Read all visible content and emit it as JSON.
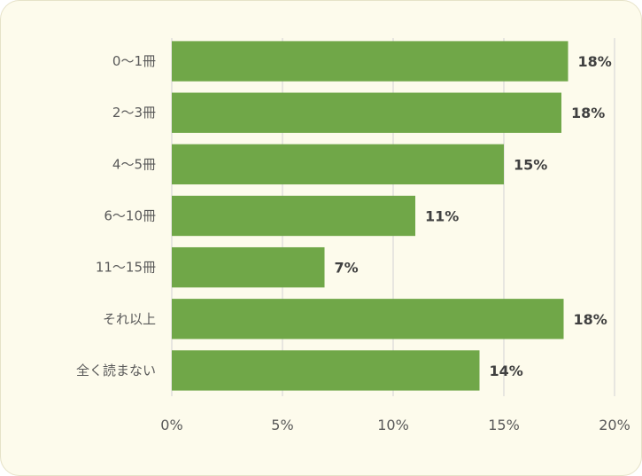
{
  "chart_data": {
    "type": "bar",
    "orientation": "horizontal",
    "categories": [
      "0～1冊",
      "2～3冊",
      "4～5冊",
      "6～10冊",
      "11～15冊",
      "それ以上",
      "全く読まない"
    ],
    "values": [
      17.9,
      17.6,
      15.0,
      11.0,
      6.9,
      17.7,
      13.9
    ],
    "data_labels": [
      "18%",
      "18%",
      "15%",
      "11%",
      "7%",
      "18%",
      "14%"
    ],
    "xlim": [
      0,
      20
    ],
    "xticks": [
      0,
      5,
      10,
      15,
      20
    ],
    "xtick_labels": [
      "0%",
      "5%",
      "10%",
      "15%",
      "20%"
    ],
    "grid": "vertical",
    "legend": "none",
    "colors": {
      "bar": "#70a748",
      "gridline": "#d9d9d9",
      "background": "#fdfbec"
    }
  }
}
